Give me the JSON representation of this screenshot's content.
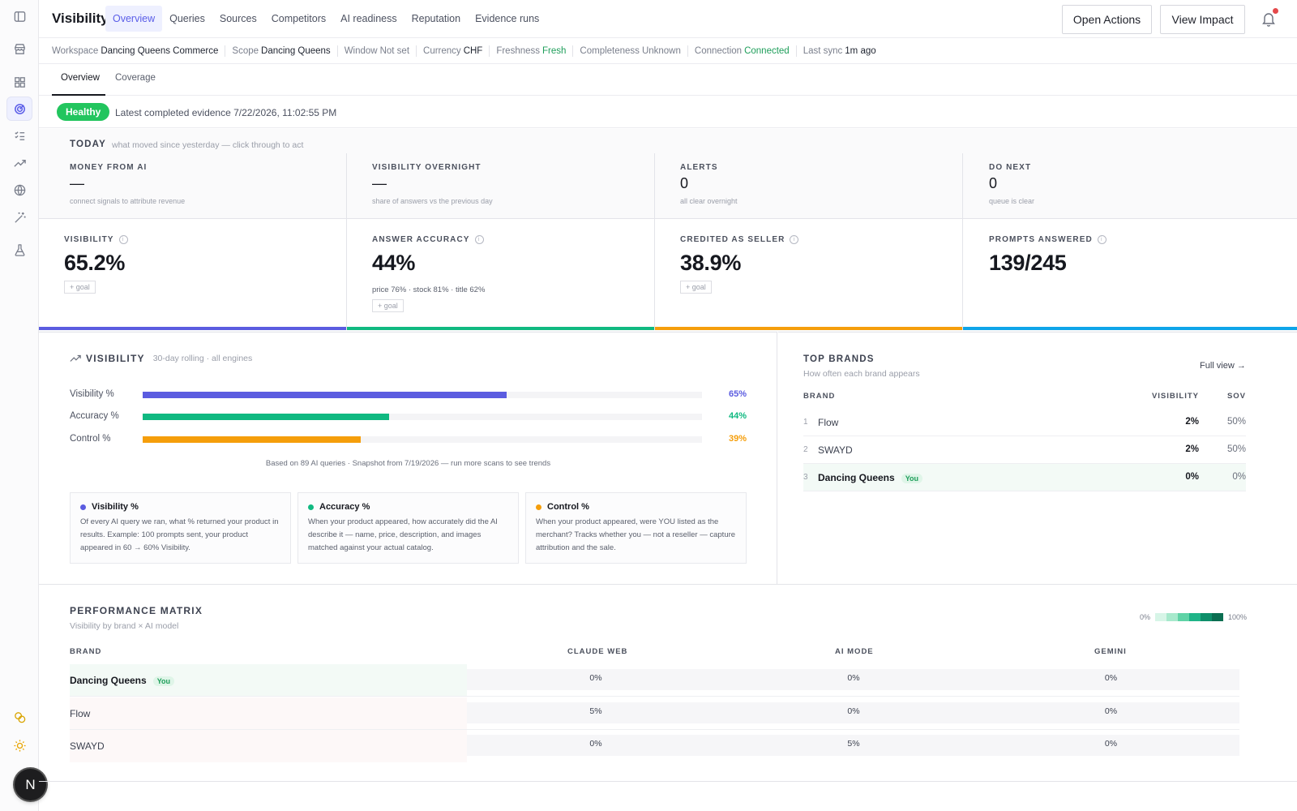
{
  "header": {
    "title": "Visibility",
    "tabs": [
      "Overview",
      "Queries",
      "Sources",
      "Competitors",
      "AI readiness",
      "Reputation",
      "Evidence runs"
    ],
    "open_actions": "Open Actions",
    "view_impact": "View Impact"
  },
  "meta": {
    "workspace_label": "Workspace",
    "workspace_value": "Dancing Queens Commerce",
    "scope_label": "Scope",
    "scope_value": "Dancing Queens",
    "window_label": "Window",
    "window_value": "Not set",
    "currency_label": "Currency",
    "currency_value": "CHF",
    "freshness_label": "Freshness",
    "freshness_value": "Fresh",
    "completeness_label": "Completeness",
    "completeness_value": "Unknown",
    "connection_label": "Connection",
    "connection_value": "Connected",
    "lastsync_label": "Last sync",
    "lastsync_value": "1m ago"
  },
  "subtabs": [
    "Overview",
    "Coverage"
  ],
  "health": {
    "status": "Healthy",
    "text": "Latest completed evidence 7/22/2026, 11:02:55 PM"
  },
  "today": {
    "title": "TODAY",
    "subtitle": "what moved since yesterday — click through to act",
    "small_kpis": [
      {
        "label": "MONEY FROM AI",
        "value": "—",
        "note": "connect signals to attribute revenue"
      },
      {
        "label": "VISIBILITY OVERNIGHT",
        "value": "—",
        "note": "share of answers vs the previous day"
      },
      {
        "label": "ALERTS",
        "value": "0",
        "note": "all clear overnight"
      },
      {
        "label": "DO NEXT",
        "value": "0",
        "note": "queue is clear"
      }
    ],
    "big_kpis": [
      {
        "label": "VISIBILITY",
        "value": "65.2%",
        "goal": "+ goal",
        "detail": "",
        "color": "#5b5ce0"
      },
      {
        "label": "ANSWER ACCURACY",
        "value": "44%",
        "goal": "+ goal",
        "detail": "price 76% · stock 81% · title 62%",
        "color": "#10b981"
      },
      {
        "label": "CREDITED AS SELLER",
        "value": "38.9%",
        "goal": "+ goal",
        "detail": "",
        "color": "#f59e0b"
      },
      {
        "label": "PROMPTS ANSWERED",
        "value": "139/245",
        "goal": "",
        "detail": "",
        "color": "#0ea5e9"
      }
    ],
    "info_glyph": "i"
  },
  "visibility": {
    "title": "VISIBILITY",
    "subtitle": "30-day rolling · all engines",
    "bars": [
      {
        "label": "Visibility %",
        "pct_text": "65%",
        "fraction": 0.65,
        "color": "#5b5ce0"
      },
      {
        "label": "Accuracy %",
        "pct_text": "44%",
        "fraction": 0.44,
        "color": "#10b981"
      },
      {
        "label": "Control %",
        "pct_text": "39%",
        "fraction": 0.39,
        "color": "#f59e0b"
      }
    ],
    "footnote": "Based on 89 AI queries · Snapshot from 7/19/2026 — run more scans to see trends",
    "legend": [
      {
        "title": "Visibility %",
        "color": "#5b5ce0",
        "body": "Of every AI query we ran, what % returned your product in results. Example: 100 prompts sent, your product appeared in 60 → 60% Visibility."
      },
      {
        "title": "Accuracy %",
        "color": "#10b981",
        "body": "When your product appeared, how accurately did the AI describe it — name, price, description, and images matched against your actual catalog."
      },
      {
        "title": "Control %",
        "color": "#f59e0b",
        "body": "When your product appeared, were YOU listed as the merchant? Tracks whether you — not a reseller — capture attribution and the sale."
      }
    ]
  },
  "top_brands": {
    "title": "TOP BRANDS",
    "subtitle": "How often each brand appears",
    "full_view": "Full view →",
    "col_brand": "BRAND",
    "col_visibility": "VISIBILITY",
    "col_sov": "SOV",
    "rows": [
      {
        "rank": "1",
        "name": "Flow",
        "visibility": "2%",
        "sov": "50%",
        "you": false
      },
      {
        "rank": "2",
        "name": "SWAYD",
        "visibility": "2%",
        "sov": "50%",
        "you": false
      },
      {
        "rank": "3",
        "name": "Dancing Queens",
        "visibility": "0%",
        "sov": "0%",
        "you": true
      }
    ],
    "you_label": "You"
  },
  "performance": {
    "title": "PERFORMANCE MATRIX",
    "subtitle": "Visibility by brand × AI model",
    "scale_min": "0%",
    "scale_max": "100%",
    "scale_colors": [
      "#d7f5e7",
      "#a7e9cc",
      "#5fd3a6",
      "#1fb488",
      "#0e8f6a",
      "#0b6e51"
    ],
    "col_brand": "BRAND",
    "columns": [
      "CLAUDE WEB",
      "AI MODE",
      "GEMINI"
    ],
    "rows": [
      {
        "brand": "Dancing Queens",
        "you": true,
        "cells": [
          "0%",
          "0%",
          "0%"
        ]
      },
      {
        "brand": "Flow",
        "you": false,
        "cells": [
          "5%",
          "0%",
          "0%"
        ]
      },
      {
        "brand": "SWAYD",
        "you": false,
        "cells": [
          "0%",
          "5%",
          "0%"
        ]
      }
    ],
    "you_label": "You"
  },
  "avatar_letter": "N"
}
